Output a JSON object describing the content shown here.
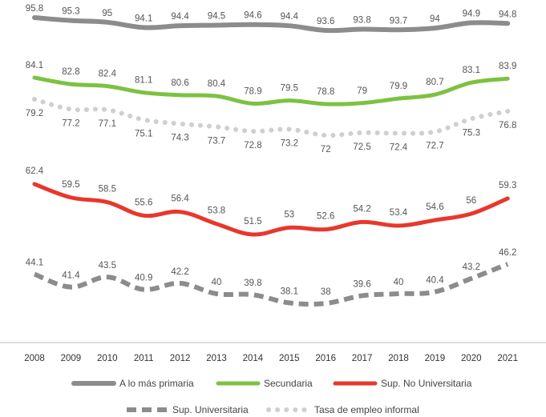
{
  "chart_data": {
    "type": "line",
    "title": "",
    "xlabel": "",
    "ylabel": "",
    "x": [
      "2008",
      "2009",
      "2010",
      "2011",
      "2012",
      "2013",
      "2014",
      "2015",
      "2016",
      "2017",
      "2018",
      "2019",
      "2020",
      "2021"
    ],
    "series": [
      {
        "name": "A lo más primaria",
        "color": "#8c8c8c",
        "style": "solid",
        "values": [
          95.8,
          95.3,
          95,
          94.1,
          94.4,
          94.5,
          94.6,
          94.4,
          93.6,
          93.8,
          93.7,
          94,
          94.9,
          94.8
        ]
      },
      {
        "name": "Secundaria",
        "color": "#7cc242",
        "style": "solid",
        "values": [
          84.1,
          82.8,
          82.4,
          81.1,
          80.6,
          80.4,
          78.9,
          79.5,
          78.8,
          79,
          79.9,
          80.7,
          83.1,
          83.9
        ]
      },
      {
        "name": "Sup. No Universitaria",
        "color": "#e8372c",
        "style": "solid",
        "values": [
          62.4,
          59.5,
          58.5,
          55.6,
          56.4,
          53.8,
          51.5,
          53,
          52.6,
          54.2,
          53.4,
          54.6,
          56,
          59.3
        ]
      },
      {
        "name": "Sup. Universitaria",
        "color": "#8c8c8c",
        "style": "dashed",
        "values": [
          44.1,
          41.4,
          43.5,
          40.9,
          42.2,
          40,
          39.8,
          38.1,
          38,
          39.6,
          40,
          40.4,
          43.2,
          46.2
        ]
      },
      {
        "name": "Tasa de empleo informal",
        "color": "#cfcfcf",
        "style": "dotted",
        "values": [
          79.2,
          77.2,
          77.1,
          75.1,
          74.3,
          73.7,
          72.8,
          73.2,
          72,
          72.5,
          72.4,
          72.7,
          75.3,
          76.8
        ]
      }
    ],
    "legend_position": "bottom",
    "grid": false
  }
}
